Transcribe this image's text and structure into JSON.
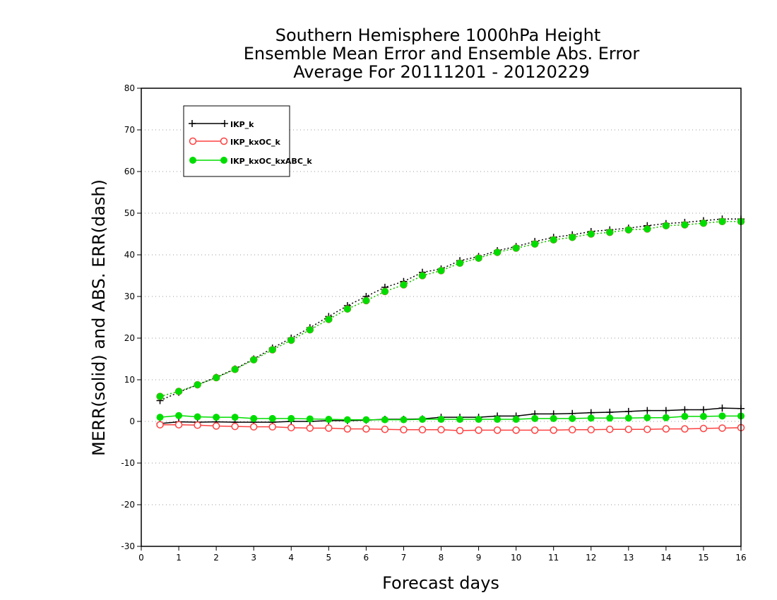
{
  "chart_data": {
    "type": "line",
    "title": [
      "Southern Hemisphere 1000hPa Height",
      "Ensemble Mean Error and Ensemble Abs. Error",
      "Average For 20111201 - 20120229"
    ],
    "xlabel": "Forecast days",
    "ylabel": "MERR(solid) and ABS. ERR(dash)",
    "xlim": [
      0,
      16
    ],
    "ylim": [
      -30,
      80
    ],
    "xticks": [
      0,
      1,
      2,
      3,
      4,
      5,
      6,
      7,
      8,
      9,
      10,
      11,
      12,
      13,
      14,
      15,
      16
    ],
    "yticks": [
      -30,
      -20,
      -10,
      0,
      10,
      20,
      30,
      40,
      50,
      60,
      70,
      80
    ],
    "grid": "horizontal dotted",
    "legend_position": "top-left",
    "legend_labels": [
      "IKP_k",
      "IKP_kxOC_k",
      "IKP_kxOC_kxABC_k"
    ],
    "x": [
      0.5,
      1,
      1.5,
      2,
      2.5,
      3,
      3.5,
      4,
      4.5,
      5,
      5.5,
      6,
      6.5,
      7,
      7.5,
      8,
      8.5,
      9,
      9.5,
      10,
      10.5,
      11,
      11.5,
      12,
      12.5,
      13,
      13.5,
      14,
      14.5,
      15,
      15.5,
      16
    ],
    "series": [
      {
        "color": "#000000",
        "marker": "plus",
        "merr": [
          -0.5,
          -0.1,
          -0.2,
          -0.1,
          -0.2,
          -0.2,
          -0.2,
          0.0,
          0.0,
          0.2,
          0.2,
          0.3,
          0.5,
          0.5,
          0.6,
          1.0,
          1.0,
          1.0,
          1.3,
          1.3,
          1.8,
          1.8,
          1.9,
          2.1,
          2.2,
          2.4,
          2.6,
          2.6,
          2.8,
          2.8,
          3.2,
          3.1
        ],
        "abs_err": [
          5.0,
          7.0,
          8.8,
          10.6,
          12.6,
          15.0,
          17.6,
          20.0,
          22.5,
          25.2,
          27.8,
          30.0,
          32.2,
          33.6,
          35.8,
          36.6,
          38.6,
          39.6,
          41.0,
          42.0,
          43.2,
          44.2,
          44.8,
          45.6,
          46.0,
          46.4,
          47.0,
          47.5,
          47.8,
          48.2,
          48.6,
          48.6
        ]
      },
      {
        "color": "#ff4040",
        "marker": "open-circle",
        "merr": [
          -0.8,
          -0.8,
          -0.9,
          -1.1,
          -1.2,
          -1.3,
          -1.3,
          -1.5,
          -1.6,
          -1.6,
          -1.8,
          -1.8,
          -1.9,
          -2.0,
          -2.0,
          -2.0,
          -2.2,
          -2.1,
          -2.1,
          -2.1,
          -2.1,
          -2.1,
          -2.0,
          -2.0,
          -1.9,
          -1.9,
          -1.9,
          -1.8,
          -1.8,
          -1.7,
          -1.6,
          -1.5
        ],
        "abs_err": [
          6.0,
          7.2,
          8.8,
          10.5,
          12.5,
          14.8,
          17.2,
          19.5,
          22.0,
          24.5,
          27.0,
          29.0,
          31.2,
          32.8,
          35.0,
          36.2,
          38.0,
          39.2,
          40.6,
          41.6,
          42.6,
          43.6,
          44.2,
          45.0,
          45.4,
          46.0,
          46.2,
          47.0,
          47.2,
          47.6,
          48.0,
          48.0
        ]
      },
      {
        "color": "#00dd00",
        "marker": "filled-circle",
        "merr": [
          1.0,
          1.4,
          1.1,
          1.0,
          1.0,
          0.7,
          0.7,
          0.7,
          0.6,
          0.5,
          0.4,
          0.4,
          0.4,
          0.4,
          0.5,
          0.5,
          0.5,
          0.5,
          0.5,
          0.5,
          0.7,
          0.7,
          0.7,
          0.8,
          0.8,
          0.8,
          0.9,
          0.9,
          1.2,
          1.2,
          1.3,
          1.3
        ],
        "abs_err": [
          6.0,
          7.2,
          8.8,
          10.5,
          12.5,
          14.8,
          17.2,
          19.5,
          22.0,
          24.5,
          27.0,
          29.0,
          31.2,
          32.8,
          35.0,
          36.2,
          38.0,
          39.2,
          40.6,
          41.6,
          42.6,
          43.6,
          44.2,
          45.0,
          45.4,
          46.0,
          46.2,
          47.0,
          47.2,
          47.6,
          48.0,
          48.0
        ]
      }
    ]
  }
}
